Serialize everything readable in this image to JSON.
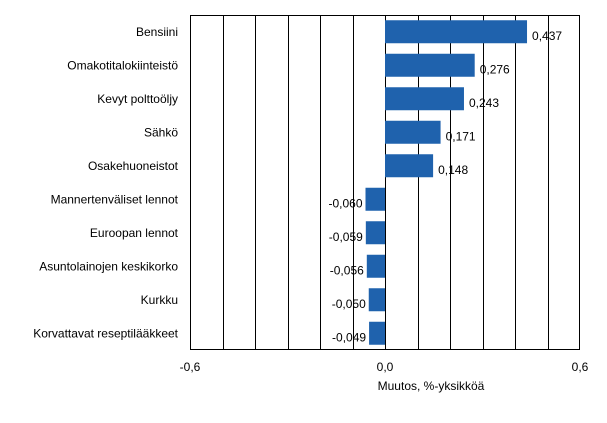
{
  "chart_data": {
    "type": "bar",
    "orientation": "horizontal",
    "title": "",
    "categories": [
      "Bensiini",
      "Omakotitalokiinteistö",
      "Kevyt polttoöljy",
      "Sähkö",
      "Osakehuoneistot",
      "Mannertenväliset lennot",
      "Euroopan lennot",
      "Asuntolainojen keskikorko",
      "Kurkku",
      "Korvattavat reseptilääkkeet"
    ],
    "values": [
      0.437,
      0.276,
      0.243,
      0.171,
      0.148,
      -0.06,
      -0.059,
      -0.056,
      -0.05,
      -0.049
    ],
    "value_labels": [
      "0,437",
      "0,276",
      "0,243",
      "0,171",
      "0,148",
      "-0,060",
      "-0,059",
      "-0,056",
      "-0,050",
      "-0,049"
    ],
    "xlabel": "Muutos, %-yksikköä",
    "ylabel": "",
    "xlim": [
      -0.6,
      0.6
    ],
    "x_ticks": [
      -0.6,
      0.0,
      0.6
    ],
    "x_tick_labels": [
      "-0,6",
      "0,0",
      "0,6"
    ],
    "gridlines": [
      -0.5,
      -0.4,
      -0.3,
      -0.2,
      -0.1,
      0.1,
      0.2,
      0.3,
      0.4,
      0.5
    ],
    "grid": true,
    "legend": "none",
    "bar_color": "#1f62ad"
  }
}
